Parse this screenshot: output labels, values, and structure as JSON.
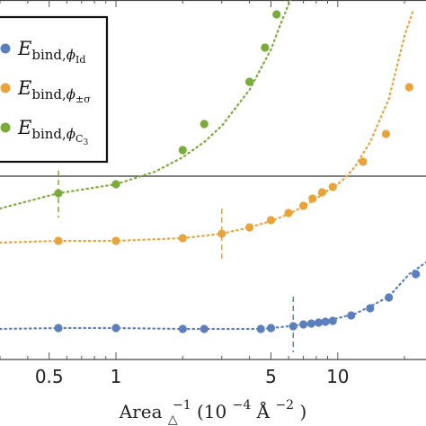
{
  "chart_data": {
    "type": "scatter",
    "x_scale": "log",
    "xlim": [
      0.3,
      25
    ],
    "x_ticks": [
      0.5,
      1,
      5,
      10
    ],
    "x_tick_labels": [
      "0.5",
      "1",
      "5",
      "10"
    ],
    "xlabel": {
      "prefix": "Area",
      "sub": "△",
      "sup": "−1",
      "units_open": " (10",
      "units_exp": "−4",
      "units_unit": "Å",
      "units_unit_exp": "−2",
      "units_close": ")"
    },
    "ylabel": "",
    "ylim": [
      0,
      474
    ],
    "y_units": "vertical position in image pixels from top (no y tick labels printed)",
    "reference_line_y": 196,
    "grid": false,
    "legend": {
      "placement": "top-left",
      "entries": [
        {
          "series": "id",
          "main": "E",
          "sub_prefix": "bind,",
          "sub_phi": "ϕ",
          "phi_sub": "Id"
        },
        {
          "series": "pm_sigma",
          "main": "E",
          "sub_prefix": "bind,",
          "sub_phi": "ϕ",
          "phi_sub": "±σ"
        },
        {
          "series": "c3",
          "main": "E",
          "sub_prefix": "bind,",
          "sub_phi": "ϕ",
          "phi_sub": "C",
          "phi_sub_sub": "3"
        }
      ]
    },
    "series": [
      {
        "id": "id",
        "color": "#5b7fbd",
        "marker_line_x": 6.3,
        "marker_line_y": [
          330,
          392
        ],
        "x": [
          0.3,
          0.55,
          1.0,
          2.0,
          2.5,
          3.0,
          3.5,
          4.0,
          4.5,
          5.0,
          5.5,
          6.0,
          6.5,
          7.0,
          7.5,
          8.0,
          8.5,
          9.0,
          10.0,
          12.0,
          14.0,
          17.0,
          21.0,
          25.0
        ],
        "y": [
          366,
          365,
          365,
          366,
          366,
          366,
          366,
          366,
          366,
          365,
          364,
          363,
          362,
          361,
          360,
          359,
          358,
          357,
          354,
          349,
          341,
          330,
          305,
          292
        ],
        "markers_x": [
          0.55,
          1.0,
          2.0,
          2.5,
          4.5,
          5.0,
          6.3,
          7.0,
          7.6,
          8.2,
          8.8,
          9.5,
          11.5,
          14.0,
          17.0,
          22.5
        ],
        "markers_y": [
          365,
          365,
          366,
          366,
          366,
          365,
          363,
          361,
          360,
          359,
          358,
          357,
          351,
          343,
          331,
          305
        ]
      },
      {
        "id": "pm_sigma",
        "color": "#e8a33a",
        "marker_line_x": 3.0,
        "marker_line_y": [
          232,
          290
        ],
        "x": [
          0.3,
          0.55,
          1.0,
          2.0,
          3.0,
          4.0,
          5.0,
          6.0,
          7.0,
          8.0,
          9.0,
          10.0,
          11.0,
          12.0,
          14.0,
          17.0,
          20.0,
          22.0
        ],
        "y": [
          270,
          268,
          268,
          265,
          260,
          253,
          246,
          238,
          230,
          221,
          212,
          205,
          196,
          185,
          158,
          110,
          40,
          10
        ],
        "markers_x": [
          0.55,
          1.0,
          2.0,
          3.0,
          4.0,
          5.0,
          6.0,
          7.0,
          7.7,
          8.5,
          9.5,
          13.0,
          16.5,
          21.0
        ],
        "markers_y": [
          268,
          268,
          265,
          260,
          253,
          245,
          237,
          229,
          221,
          214,
          208,
          180,
          149,
          97
        ]
      },
      {
        "id": "c3",
        "color": "#7aab3a",
        "marker_line_x": 0.55,
        "marker_line_y": [
          190,
          242
        ],
        "x": [
          0.3,
          0.55,
          1.0,
          1.5,
          2.0,
          2.5,
          3.0,
          4.0,
          5.0,
          5.5,
          6.0,
          6.5
        ],
        "y": [
          232,
          215,
          205,
          191,
          175,
          158,
          140,
          100,
          55,
          28,
          5,
          -15
        ],
        "markers_x": [
          0.55,
          1.0,
          2.0,
          2.5,
          4.0,
          4.7,
          5.3
        ],
        "markers_y": [
          215,
          205,
          167,
          138,
          91,
          53,
          16
        ]
      }
    ]
  }
}
